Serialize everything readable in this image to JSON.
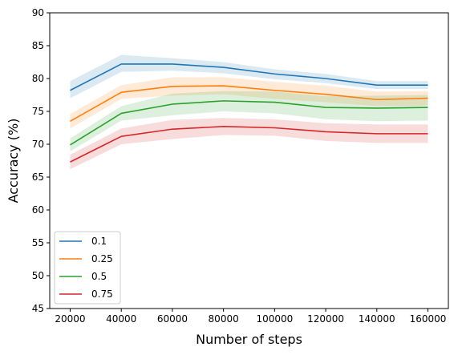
{
  "chart_data": {
    "type": "line",
    "xlabel": "Number of steps",
    "ylabel": "Accuracy (%)",
    "x": [
      20000,
      40000,
      60000,
      80000,
      100000,
      120000,
      140000,
      160000
    ],
    "x_ticks": [
      20000,
      40000,
      60000,
      80000,
      100000,
      120000,
      140000,
      160000
    ],
    "y_ticks": [
      45,
      50,
      55,
      60,
      65,
      70,
      75,
      80,
      85,
      90
    ],
    "ylim": [
      45,
      90
    ],
    "xlim": [
      12000,
      168000
    ],
    "grid": false,
    "legend_position": "lower-left",
    "shaded_band": true,
    "series": [
      {
        "name": "0.1",
        "color": "#1f77b4",
        "values": [
          78.2,
          82.2,
          82.2,
          81.7,
          80.7,
          80.0,
          79.0,
          79.0
        ],
        "lower": [
          77.0,
          81.0,
          81.2,
          80.8,
          79.9,
          79.3,
          78.4,
          78.4
        ],
        "upper": [
          79.6,
          83.6,
          83.1,
          82.5,
          81.4,
          80.7,
          79.6,
          79.6
        ]
      },
      {
        "name": "0.25",
        "color": "#ff7f0e",
        "values": [
          73.5,
          77.9,
          78.8,
          78.9,
          78.2,
          77.6,
          76.8,
          77.0
        ],
        "lower": [
          72.4,
          76.9,
          77.4,
          77.6,
          76.9,
          76.4,
          75.8,
          75.9
        ],
        "upper": [
          74.6,
          79.0,
          80.2,
          80.2,
          79.5,
          78.9,
          78.0,
          78.1
        ]
      },
      {
        "name": "0.5",
        "color": "#2ca02c",
        "values": [
          69.9,
          74.7,
          76.1,
          76.6,
          76.4,
          75.6,
          75.5,
          75.6
        ],
        "lower": [
          68.9,
          73.6,
          74.4,
          75.0,
          74.7,
          73.8,
          73.5,
          73.6
        ],
        "upper": [
          70.9,
          75.8,
          77.7,
          78.1,
          78.0,
          77.3,
          77.4,
          77.5
        ]
      },
      {
        "name": "0.75",
        "color": "#d62728",
        "values": [
          67.3,
          71.2,
          72.3,
          72.7,
          72.5,
          71.9,
          71.6,
          71.6
        ],
        "lower": [
          66.2,
          70.0,
          70.8,
          71.4,
          71.3,
          70.5,
          70.2,
          70.2
        ],
        "upper": [
          68.4,
          72.4,
          73.7,
          74.0,
          73.8,
          73.2,
          73.0,
          73.0
        ]
      }
    ]
  }
}
